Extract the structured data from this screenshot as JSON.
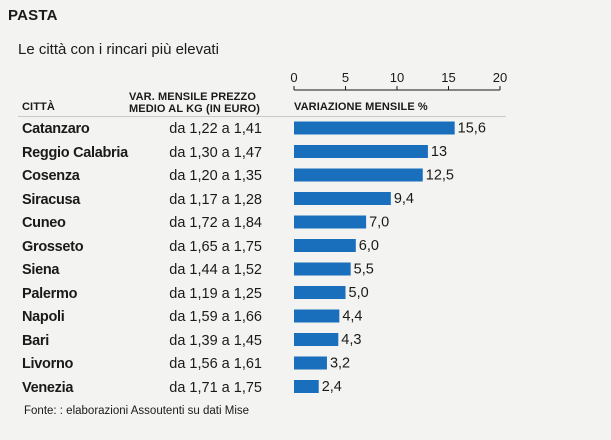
{
  "section": "PASTA",
  "subtitle": "Le città con i rincari più elevati",
  "headers": {
    "city": "CITTÀ",
    "price_line1": "VAR. MENSILE  PREZZO",
    "price_line2": "MEDIO AL KG (IN EURO)",
    "variation": "VARIAZIONE MENSILE %"
  },
  "rows": [
    {
      "city": "Catanzaro",
      "price": "da 1,22 a 1,41",
      "label": "15,6"
    },
    {
      "city": "Reggio Calabria",
      "price": "da 1,30 a 1,47",
      "label": "13"
    },
    {
      "city": "Cosenza",
      "price": "da 1,20 a 1,35",
      "label": "12,5"
    },
    {
      "city": "Siracusa",
      "price": "da 1,17 a 1,28",
      "label": "9,4"
    },
    {
      "city": "Cuneo",
      "price": "da 1,72 a 1,84",
      "label": "7,0"
    },
    {
      "city": "Grosseto",
      "price": "da 1,65 a 1,75",
      "label": "6,0"
    },
    {
      "city": "Siena",
      "price": "da 1,44 a 1,52",
      "label": "5,5"
    },
    {
      "city": "Palermo",
      "price": "da 1,19 a 1,25",
      "label": "5,0"
    },
    {
      "city": "Napoli",
      "price": "da 1,59 a 1,66",
      "label": "4,4"
    },
    {
      "city": "Bari",
      "price": "da 1,39 a 1,45",
      "label": "4,3"
    },
    {
      "city": "Livorno",
      "price": "da 1,56 a 1,61",
      "label": "3,2"
    },
    {
      "city": "Venezia",
      "price": "da 1,71 a 1,75",
      "label": "2,4"
    }
  ],
  "source": "Fonte: : elaborazioni Assoutenti su dati Mise",
  "chart_data": {
    "type": "bar",
    "orientation": "horizontal",
    "xlabel": "VARIAZIONE MENSILE %",
    "xlim": [
      0,
      20
    ],
    "xticks": [
      0,
      5,
      10,
      15,
      20
    ],
    "categories": [
      "Catanzaro",
      "Reggio Calabria",
      "Cosenza",
      "Siracusa",
      "Cuneo",
      "Grosseto",
      "Siena",
      "Palermo",
      "Napoli",
      "Bari",
      "Livorno",
      "Venezia"
    ],
    "values": [
      15.6,
      13,
      12.5,
      9.4,
      7.0,
      6.0,
      5.5,
      5.0,
      4.4,
      4.3,
      3.2,
      2.4
    ],
    "bar_color": "#1a6fbd",
    "grid": false
  }
}
